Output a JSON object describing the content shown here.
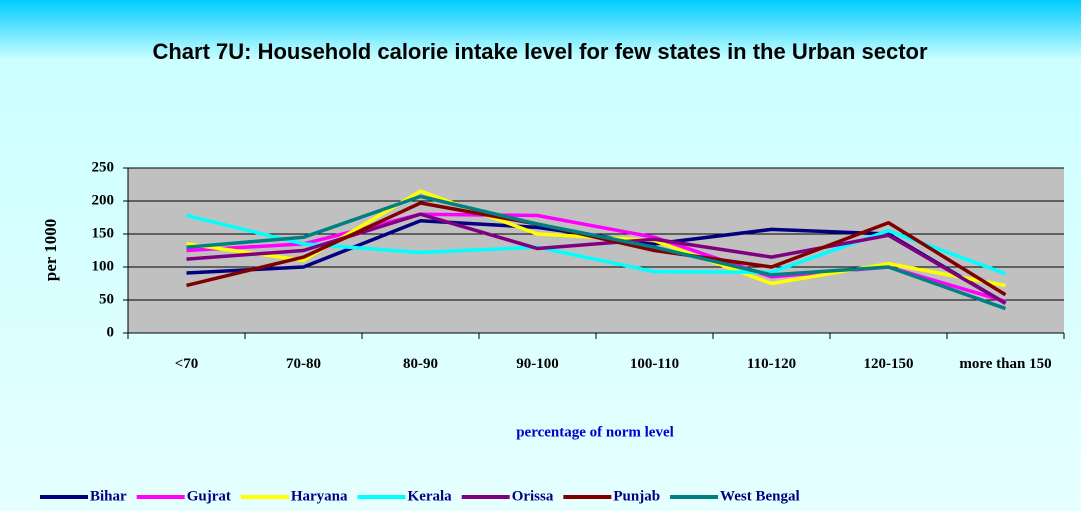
{
  "chart_data": {
    "type": "line",
    "title": "Chart 7U: Household calorie intake level for few states in the Urban sector",
    "x_label": "percentage of norm level",
    "y_label": "per 1000",
    "categories": [
      "<70",
      "70-80",
      "80-90",
      "90-100",
      "100-110",
      "110-120",
      "120-150",
      "more than 150"
    ],
    "ylim": [
      0,
      250
    ],
    "yticks": [
      0,
      50,
      100,
      150,
      200,
      250
    ],
    "grid": true,
    "legend": "bottom",
    "series": [
      {
        "name": "Bihar",
        "color": "#000080",
        "values": [
          91,
          100,
          170,
          160,
          135,
          157,
          150,
          45
        ]
      },
      {
        "name": "Gujrat",
        "color": "#ff00ff",
        "values": [
          125,
          135,
          180,
          178,
          145,
          85,
          100,
          48
        ]
      },
      {
        "name": "Haryana",
        "color": "#ffff00",
        "values": [
          135,
          110,
          215,
          150,
          140,
          75,
          105,
          72
        ]
      },
      {
        "name": "Kerala",
        "color": "#00ffff",
        "values": [
          178,
          135,
          122,
          130,
          93,
          92,
          155,
          90
        ]
      },
      {
        "name": "Orissa",
        "color": "#800080",
        "values": [
          112,
          125,
          180,
          128,
          142,
          115,
          148,
          45
        ]
      },
      {
        "name": "Punjab",
        "color": "#800000",
        "values": [
          72,
          115,
          197,
          165,
          125,
          100,
          167,
          58
        ]
      },
      {
        "name": "West Bengal",
        "color": "#008080",
        "values": [
          130,
          145,
          207,
          165,
          130,
          88,
          100,
          37
        ]
      }
    ]
  }
}
